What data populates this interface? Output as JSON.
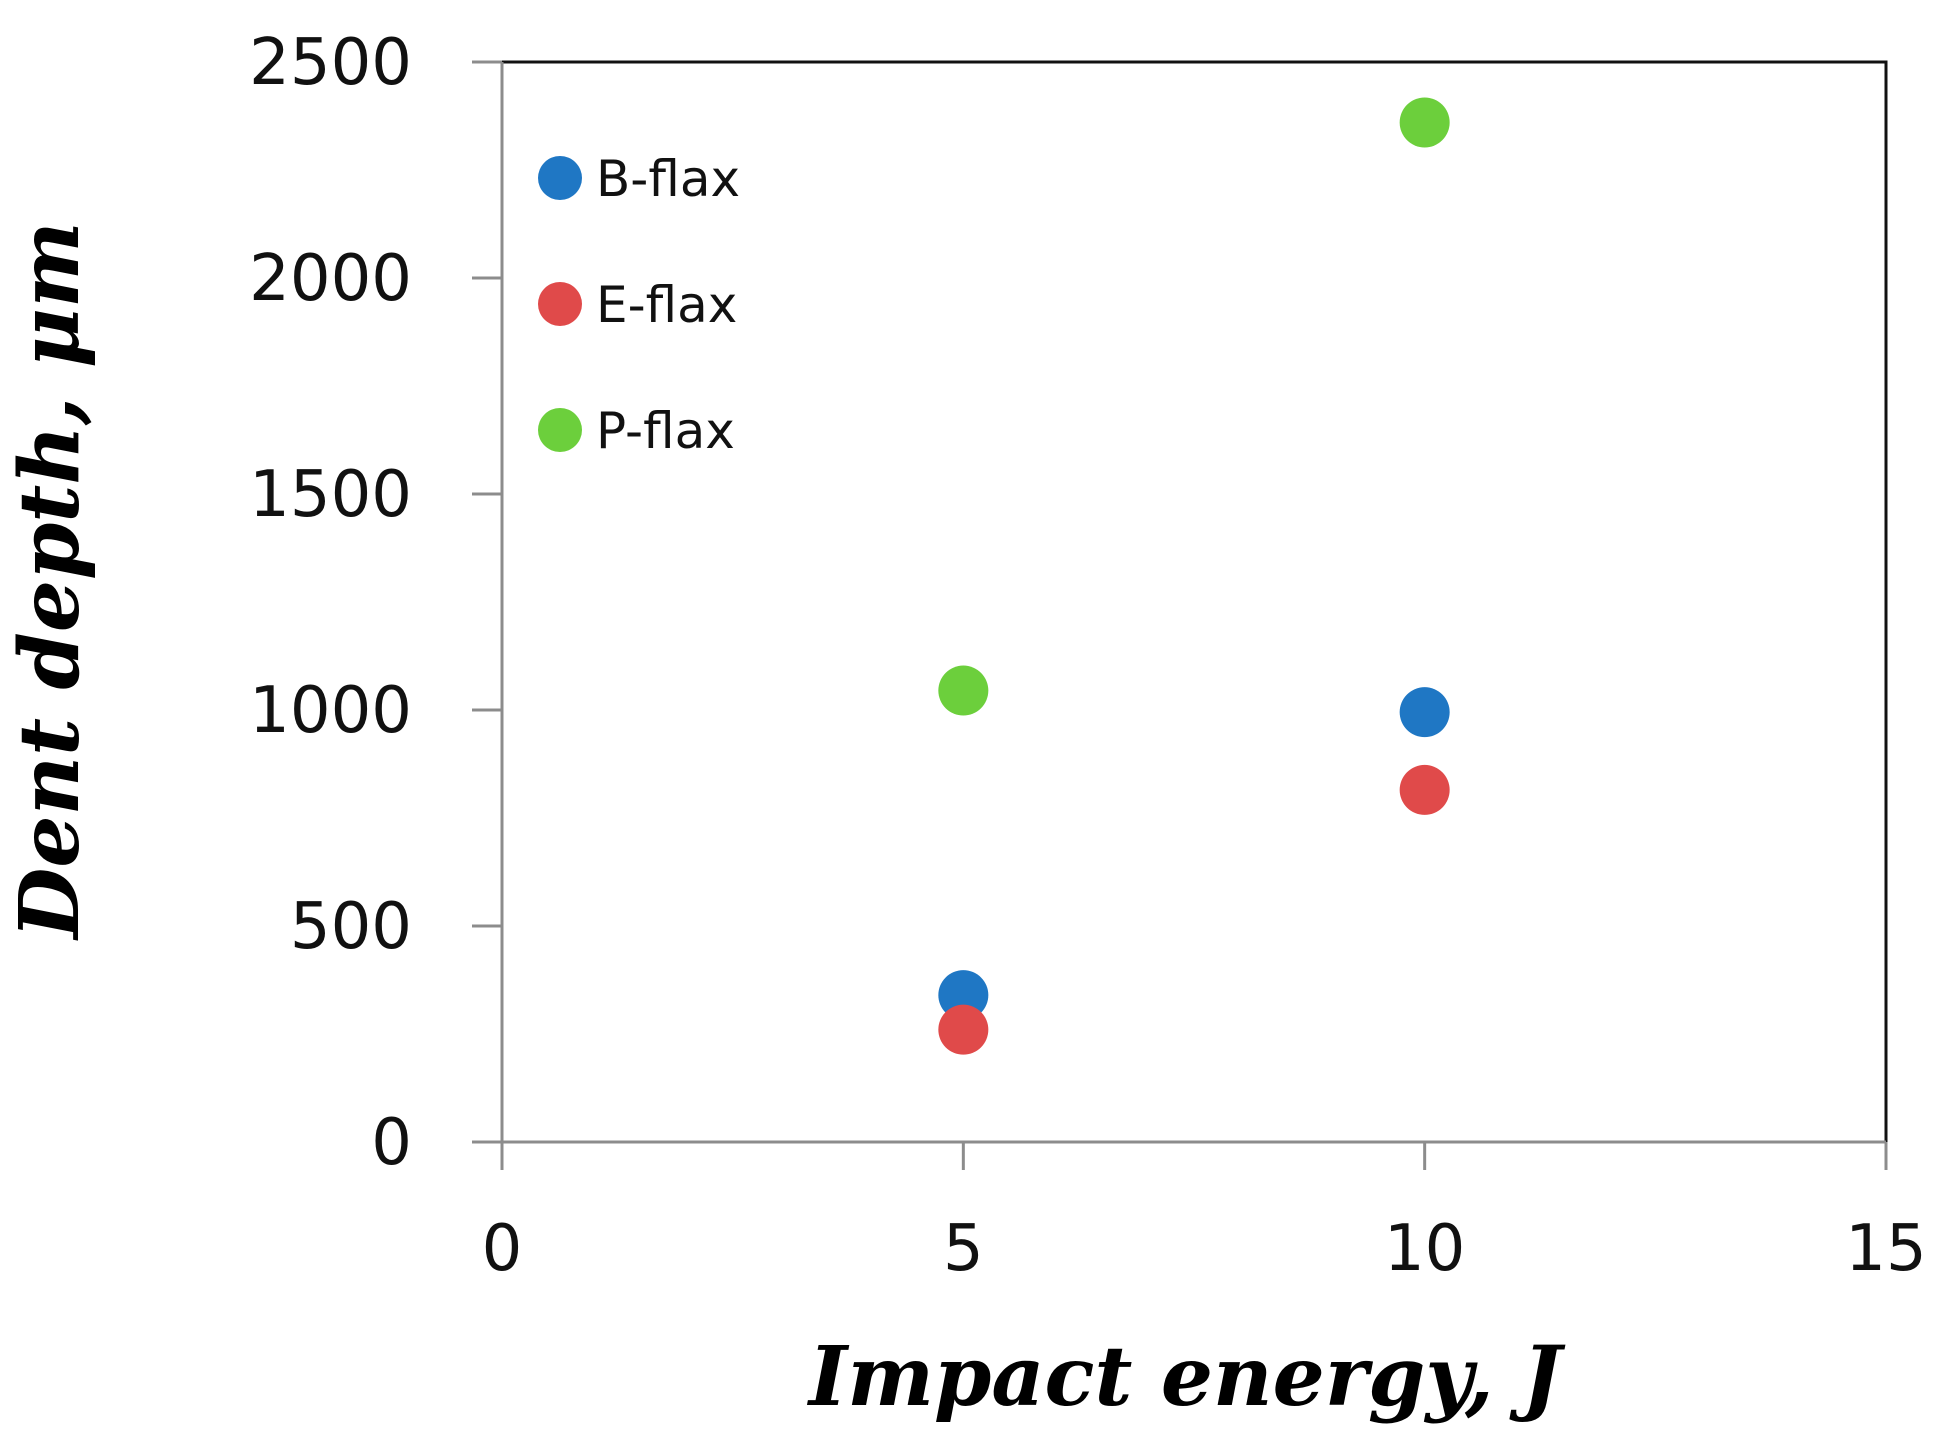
{
  "chart_data": {
    "type": "scatter",
    "title": "",
    "xlabel": "Impact energy, J",
    "ylabel": "Dent depth, μm",
    "xlim": [
      0,
      15
    ],
    "ylim": [
      0,
      2500
    ],
    "xticks": [
      0,
      5,
      10,
      15
    ],
    "yticks": [
      0,
      500,
      1000,
      1500,
      2000,
      2500
    ],
    "grid": false,
    "legend_position": "top-left",
    "series": [
      {
        "name": "B-flax",
        "color": "#1f77c4",
        "x": [
          5,
          10
        ],
        "y": [
          340,
          995
        ]
      },
      {
        "name": "E-flax",
        "color": "#e04a4a",
        "x": [
          5,
          10
        ],
        "y": [
          260,
          815
        ]
      },
      {
        "name": "P-flax",
        "color": "#6ccf3c",
        "x": [
          5,
          10
        ],
        "y": [
          1045,
          2360
        ]
      }
    ]
  }
}
